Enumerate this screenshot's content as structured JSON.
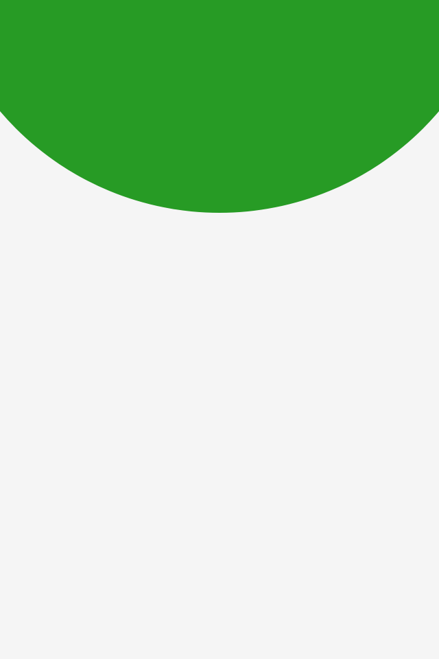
{
  "theme": {
    "background_color": "#f5f5f5",
    "header_color": "#279b25"
  }
}
